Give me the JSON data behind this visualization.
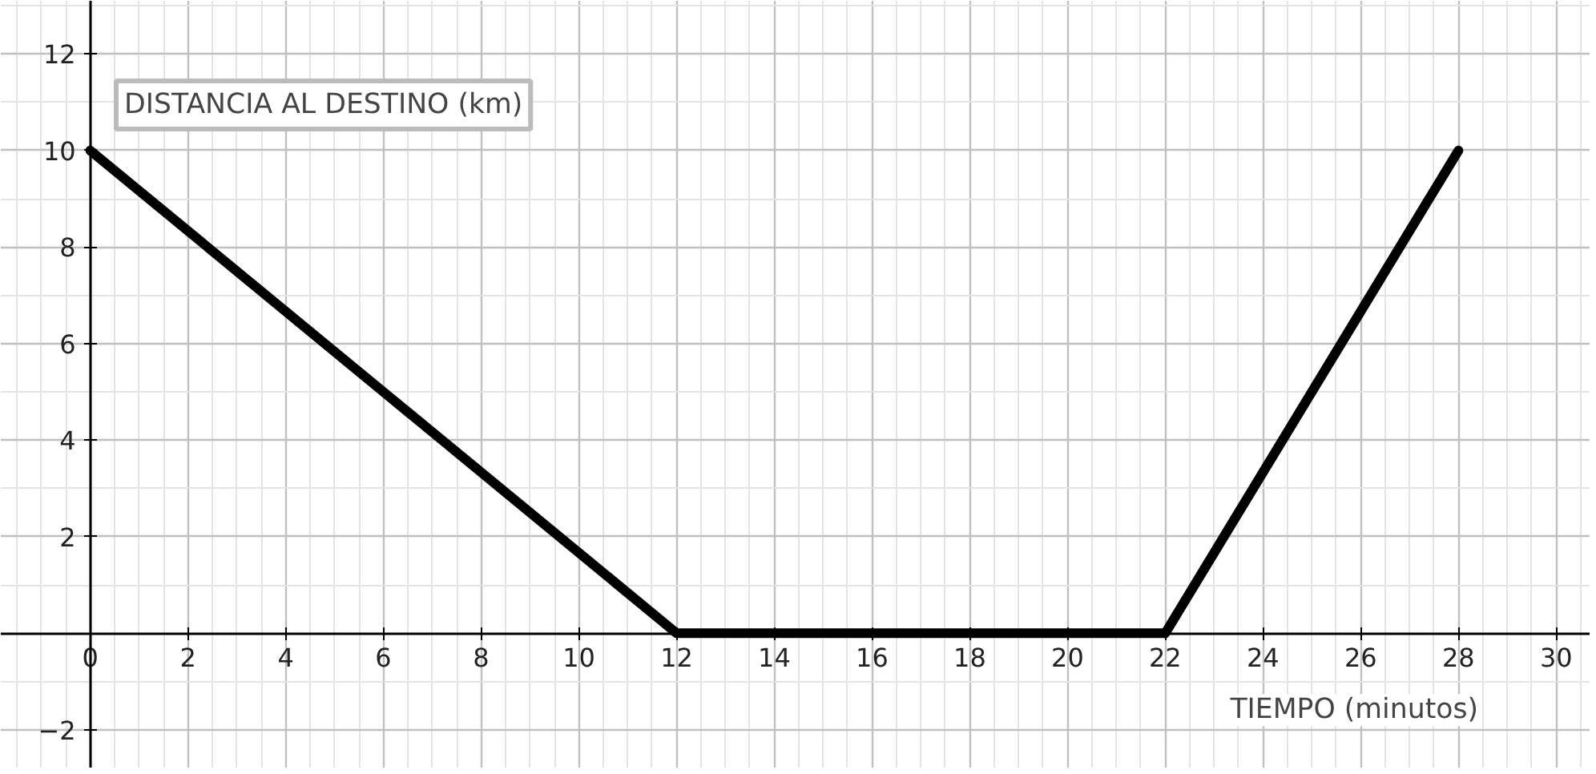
{
  "chart_data": {
    "type": "line",
    "xlabel": "TIEMPO (minutos)",
    "ylabel": "DISTANCIA AL DESTINO (km)",
    "x": [
      0,
      12,
      22,
      28
    ],
    "series": [
      {
        "color": "#000000",
        "values": [
          10,
          0,
          0,
          10
        ]
      }
    ],
    "xlim": [
      -1.83,
      30.7
    ],
    "ylim": [
      -2.8,
      13.1
    ],
    "xticks": [
      0,
      2,
      4,
      6,
      8,
      10,
      12,
      14,
      16,
      18,
      20,
      22,
      24,
      26,
      28,
      30
    ],
    "yticks": [
      -2,
      2,
      4,
      6,
      8,
      10,
      12
    ],
    "grid": true,
    "marker": "none",
    "line_style": "solid"
  }
}
